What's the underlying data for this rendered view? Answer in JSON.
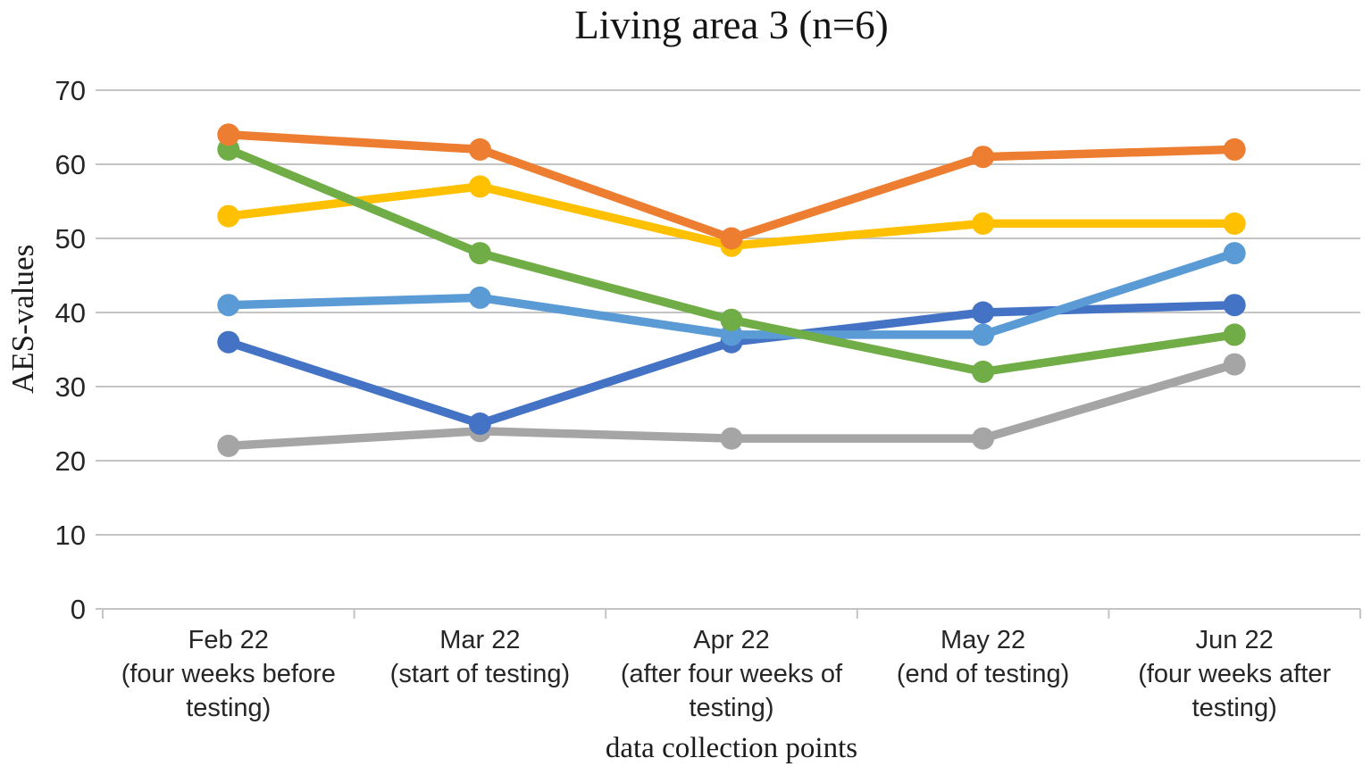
{
  "chart_data": {
    "type": "line",
    "title": "Living area 3 (n=6)",
    "xlabel": "data collection points",
    "ylabel": "AES-values",
    "ylim": [
      0,
      70
    ],
    "yticks": [
      70,
      60,
      50,
      40,
      30,
      20,
      10,
      0
    ],
    "grid": "horizontal",
    "grid_color": "#C4C4C4",
    "axis_text_color": "#262626",
    "legend": "none",
    "marker": "circle",
    "categories": [
      "Feb 22 (four weeks before testing)",
      "Mar 22 (start of testing)",
      "Apr 22 (after four weeks of testing)",
      "May 22 (end of testing)",
      "Jun 22 (four weeks after testing)"
    ],
    "category_label_lines": [
      [
        "Feb 22",
        "(four weeks before",
        "testing)"
      ],
      [
        "Mar 22",
        "(start of testing)"
      ],
      [
        "Apr 22",
        "(after four weeks of",
        "testing)"
      ],
      [
        "May 22",
        "(end of testing)"
      ],
      [
        "Jun 22",
        "(four weeks after",
        "testing)"
      ]
    ],
    "series": [
      {
        "name": "gray",
        "color": "#A5A5A5",
        "values": [
          22,
          24,
          23,
          23,
          33
        ]
      },
      {
        "name": "dark-blue",
        "color": "#4472C4",
        "values": [
          36,
          25,
          36,
          40,
          41
        ]
      },
      {
        "name": "light-blue",
        "color": "#5B9BD5",
        "values": [
          41,
          42,
          37,
          37,
          48
        ]
      },
      {
        "name": "yellow",
        "color": "#FFC000",
        "values": [
          53,
          57,
          49,
          52,
          52
        ]
      },
      {
        "name": "green",
        "color": "#70AD47",
        "values": [
          62,
          48,
          39,
          32,
          37
        ]
      },
      {
        "name": "orange",
        "color": "#ED7D31",
        "values": [
          64,
          62,
          50,
          61,
          62
        ]
      }
    ]
  }
}
